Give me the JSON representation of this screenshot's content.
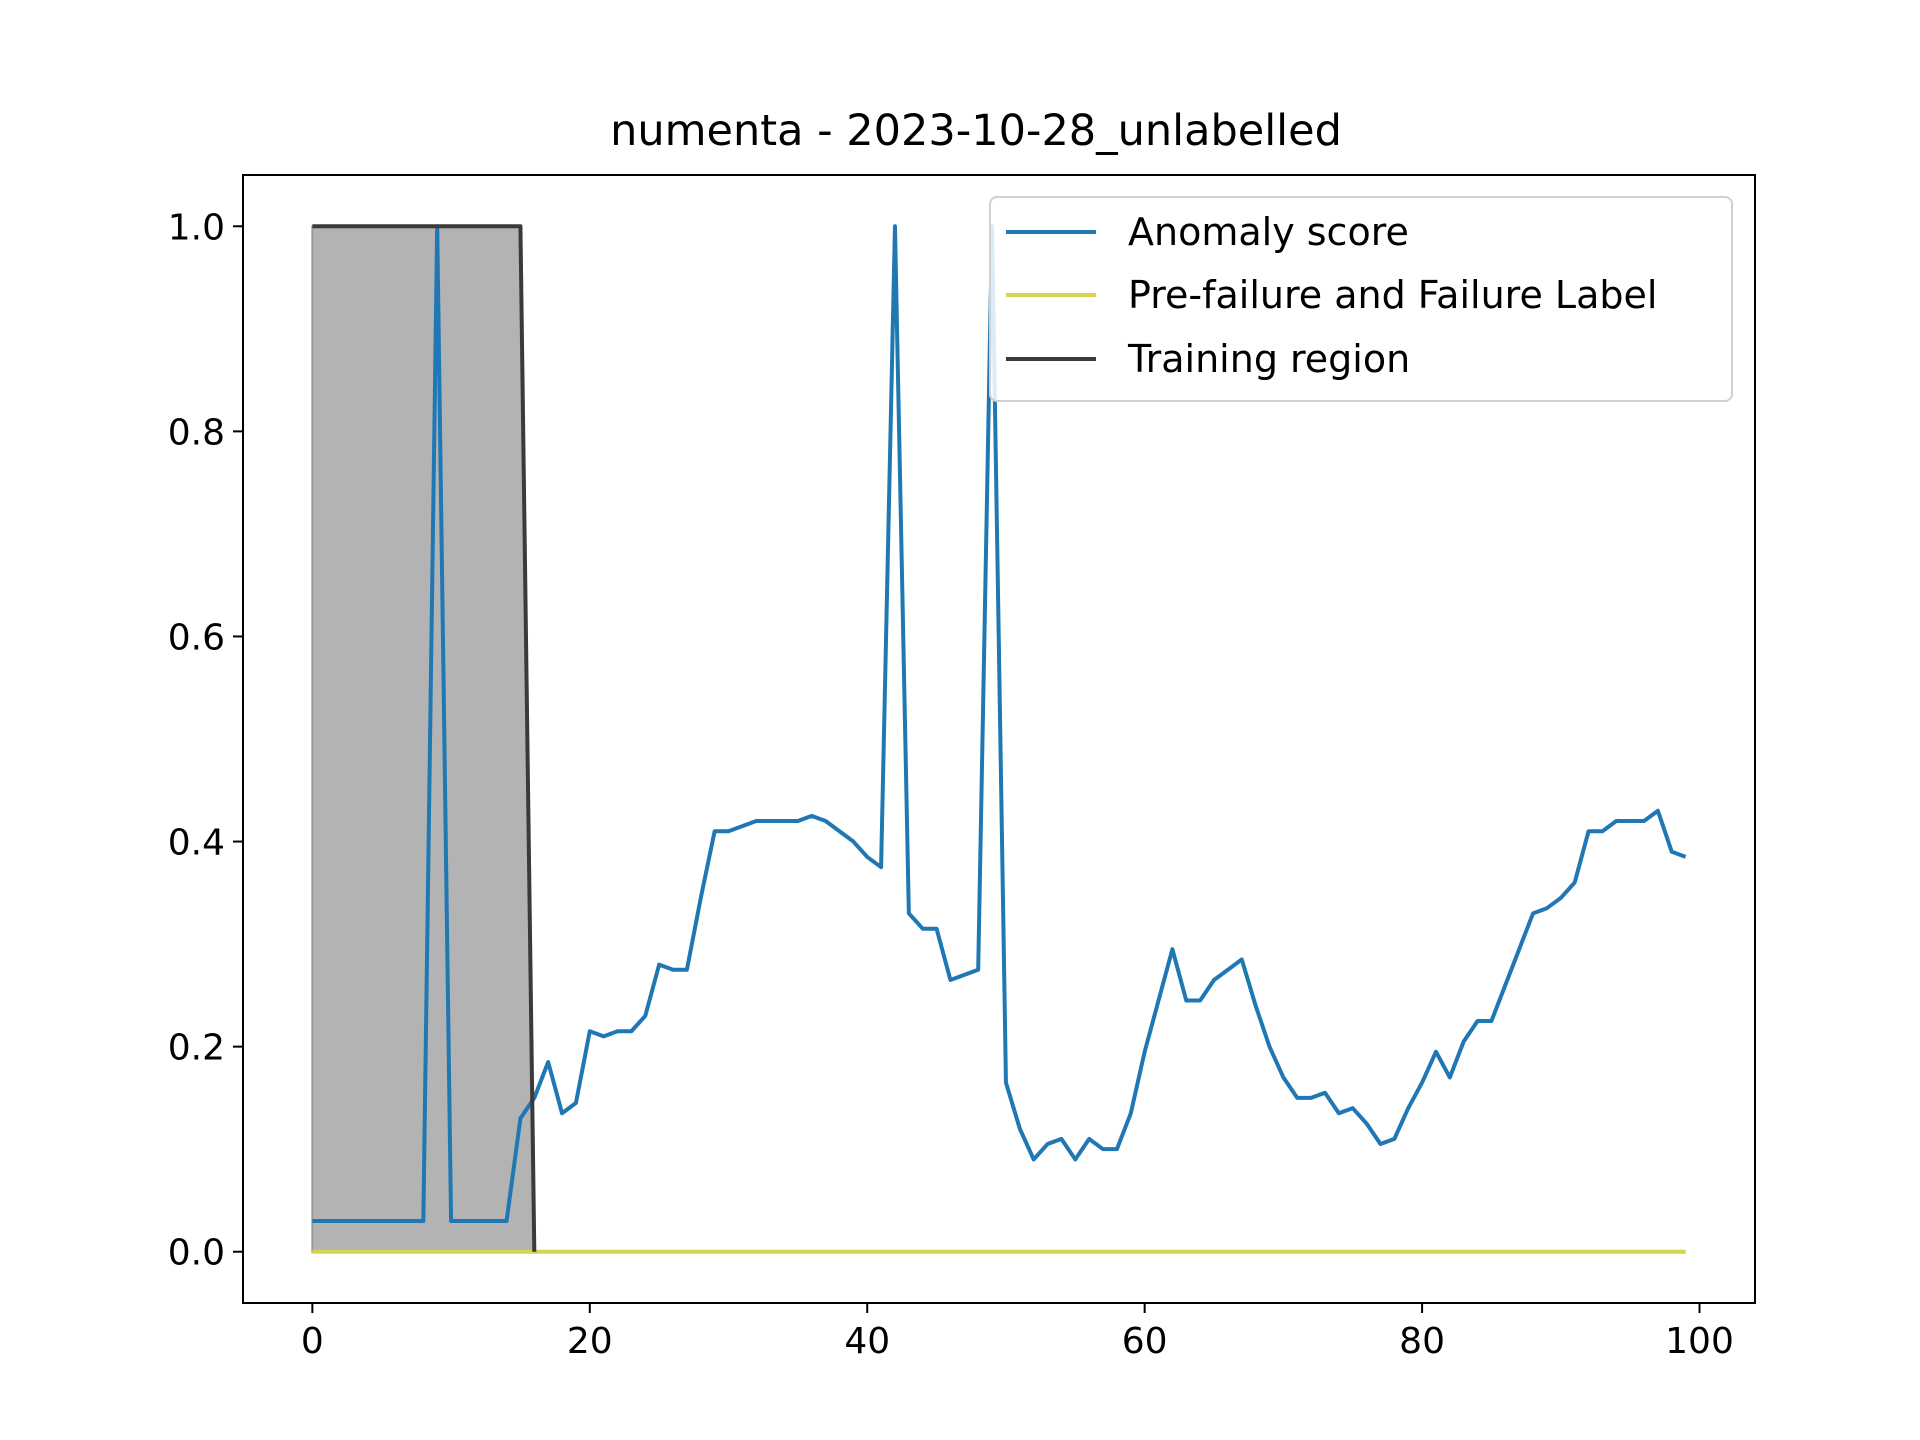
{
  "chart_data": {
    "type": "line",
    "title": "numenta - 2023-10-28_unlabelled",
    "xlabel": "",
    "ylabel": "",
    "xlim": [
      -5,
      104
    ],
    "ylim": [
      -0.05,
      1.05
    ],
    "x_ticks": [
      0,
      20,
      40,
      60,
      80,
      100
    ],
    "y_ticks": [
      0.0,
      0.2,
      0.4,
      0.6,
      0.8,
      1.0
    ],
    "x_tick_labels": [
      "0",
      "20",
      "40",
      "60",
      "80",
      "100"
    ],
    "y_tick_labels": [
      "0.0",
      "0.2",
      "0.4",
      "0.6",
      "0.8",
      "1.0"
    ],
    "grid": false,
    "legend_position": "upper right",
    "series": [
      {
        "name": "Anomaly score",
        "color": "#1f77b4",
        "x": [
          0,
          1,
          2,
          3,
          4,
          5,
          6,
          7,
          8,
          9,
          10,
          11,
          12,
          13,
          14,
          15,
          16,
          17,
          18,
          19,
          20,
          21,
          22,
          23,
          24,
          25,
          26,
          27,
          28,
          29,
          30,
          31,
          32,
          33,
          34,
          35,
          36,
          37,
          38,
          39,
          40,
          41,
          42,
          43,
          44,
          45,
          46,
          47,
          48,
          49,
          50,
          51,
          52,
          53,
          54,
          55,
          56,
          57,
          58,
          59,
          60,
          61,
          62,
          63,
          64,
          65,
          66,
          67,
          68,
          69,
          70,
          71,
          72,
          73,
          74,
          75,
          76,
          77,
          78,
          79,
          80,
          81,
          82,
          83,
          84,
          85,
          86,
          87,
          88,
          89,
          90,
          91,
          92,
          93,
          94,
          95,
          96,
          97,
          98,
          99
        ],
        "values": [
          0.03,
          0.03,
          0.03,
          0.03,
          0.03,
          0.03,
          0.03,
          0.03,
          0.03,
          1.0,
          0.03,
          0.03,
          0.03,
          0.03,
          0.03,
          0.13,
          0.15,
          0.185,
          0.135,
          0.145,
          0.215,
          0.21,
          0.215,
          0.215,
          0.23,
          0.28,
          0.275,
          0.275,
          0.345,
          0.41,
          0.41,
          0.415,
          0.42,
          0.42,
          0.42,
          0.42,
          0.425,
          0.42,
          0.41,
          0.4,
          0.385,
          0.375,
          1.0,
          0.33,
          0.315,
          0.315,
          0.265,
          0.27,
          0.275,
          1.0,
          0.165,
          0.12,
          0.09,
          0.105,
          0.11,
          0.09,
          0.11,
          0.1,
          0.1,
          0.135,
          0.195,
          0.245,
          0.295,
          0.245,
          0.245,
          0.265,
          0.275,
          0.285,
          0.24,
          0.2,
          0.17,
          0.15,
          0.15,
          0.155,
          0.135,
          0.14,
          0.125,
          0.105,
          0.11,
          0.14,
          0.165,
          0.195,
          0.17,
          0.205,
          0.225,
          0.225,
          0.26,
          0.295,
          0.33,
          0.335,
          0.345,
          0.36,
          0.41,
          0.41,
          0.42,
          0.42,
          0.42,
          0.43,
          0.39,
          0.385
        ]
      },
      {
        "name": "Pre-failure and Failure Label",
        "color": "#d4d44e",
        "x": [
          0,
          99
        ],
        "values": [
          0.0,
          0.0
        ]
      },
      {
        "name": "Training region",
        "color": "#3a3a3a",
        "fill_color": "#b3b3b3",
        "x": [
          0,
          15,
          16
        ],
        "values": [
          1.0,
          1.0,
          0.0
        ]
      }
    ]
  }
}
